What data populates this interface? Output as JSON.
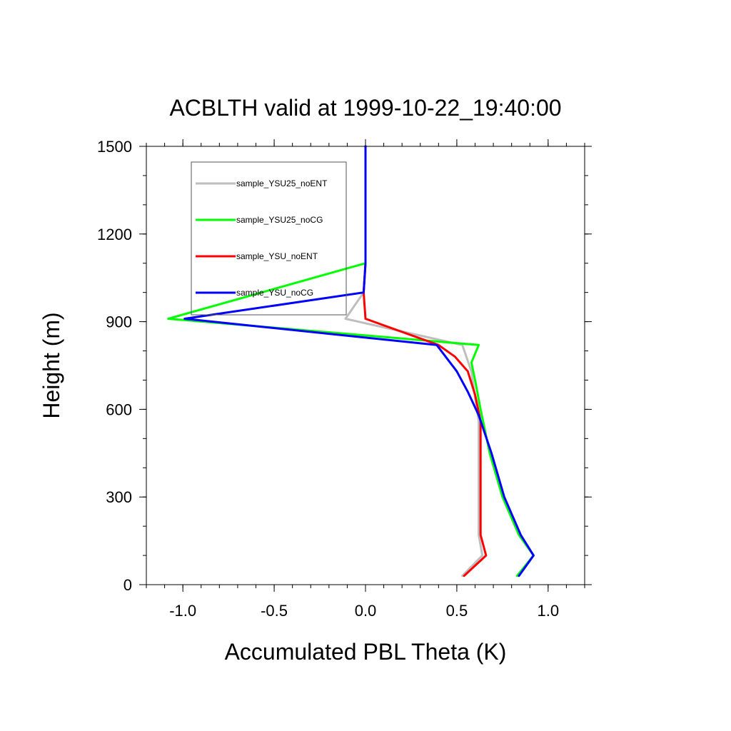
{
  "chart_data": {
    "type": "line",
    "title": "ACBLTH valid at 1999-10-22_19:40:00",
    "xlabel": "Accumulated PBL Theta (K)",
    "ylabel": "Height (m)",
    "xlim": [
      -1.2,
      1.2
    ],
    "ylim": [
      0,
      1500
    ],
    "xticks": [
      -1.0,
      -0.5,
      0.0,
      0.5,
      1.0
    ],
    "xtick_labels": [
      "-1.0",
      "-0.5",
      "0.0",
      "0.5",
      "1.0"
    ],
    "yticks": [
      0,
      300,
      600,
      900,
      1200,
      1500
    ],
    "ytick_labels": [
      "0",
      "300",
      "600",
      "900",
      "1200",
      "1500"
    ],
    "x_minor_step": 0.1,
    "y_minor_step": 100,
    "grid": false,
    "legend_position": "top-left",
    "series": [
      {
        "name": "sample_YSU25_noENT",
        "color": "#bebebe",
        "points": [
          [
            0.53,
            30
          ],
          [
            0.64,
            100
          ],
          [
            0.62,
            170
          ],
          [
            0.62,
            250
          ],
          [
            0.62,
            400
          ],
          [
            0.62,
            560
          ],
          [
            0.6,
            640
          ],
          [
            0.58,
            730
          ],
          [
            0.53,
            820
          ],
          [
            -0.11,
            910
          ],
          [
            -0.01,
            1000
          ],
          [
            0.0,
            1100
          ],
          [
            0.0,
            1200
          ],
          [
            0.0,
            1500
          ]
        ]
      },
      {
        "name": "sample_YSU25_noCG",
        "color": "#00ff00",
        "points": [
          [
            0.83,
            30
          ],
          [
            0.92,
            100
          ],
          [
            0.84,
            170
          ],
          [
            0.75,
            300
          ],
          [
            0.68,
            450
          ],
          [
            0.63,
            600
          ],
          [
            0.6,
            700
          ],
          [
            0.58,
            760
          ],
          [
            0.62,
            820
          ],
          [
            -1.08,
            910
          ],
          [
            0.0,
            1100
          ],
          [
            0.0,
            1200
          ],
          [
            0.0,
            1500
          ]
        ]
      },
      {
        "name": "sample_YSU_noENT",
        "color": "#ff0000",
        "points": [
          [
            0.54,
            30
          ],
          [
            0.66,
            100
          ],
          [
            0.63,
            170
          ],
          [
            0.63,
            250
          ],
          [
            0.63,
            400
          ],
          [
            0.63,
            560
          ],
          [
            0.6,
            650
          ],
          [
            0.56,
            730
          ],
          [
            0.49,
            780
          ],
          [
            0.4,
            820
          ],
          [
            0.0,
            910
          ],
          [
            -0.01,
            1000
          ],
          [
            0.0,
            1100
          ],
          [
            0.0,
            1200
          ],
          [
            0.0,
            1500
          ]
        ]
      },
      {
        "name": "sample_YSU_noCG",
        "color": "#0000ff",
        "points": [
          [
            0.84,
            30
          ],
          [
            0.92,
            100
          ],
          [
            0.85,
            170
          ],
          [
            0.76,
            300
          ],
          [
            0.69,
            450
          ],
          [
            0.62,
            580
          ],
          [
            0.56,
            660
          ],
          [
            0.5,
            730
          ],
          [
            0.39,
            820
          ],
          [
            -0.99,
            910
          ],
          [
            -0.01,
            1000
          ],
          [
            0.0,
            1100
          ],
          [
            0.0,
            1200
          ],
          [
            0.0,
            1500
          ]
        ]
      }
    ]
  }
}
